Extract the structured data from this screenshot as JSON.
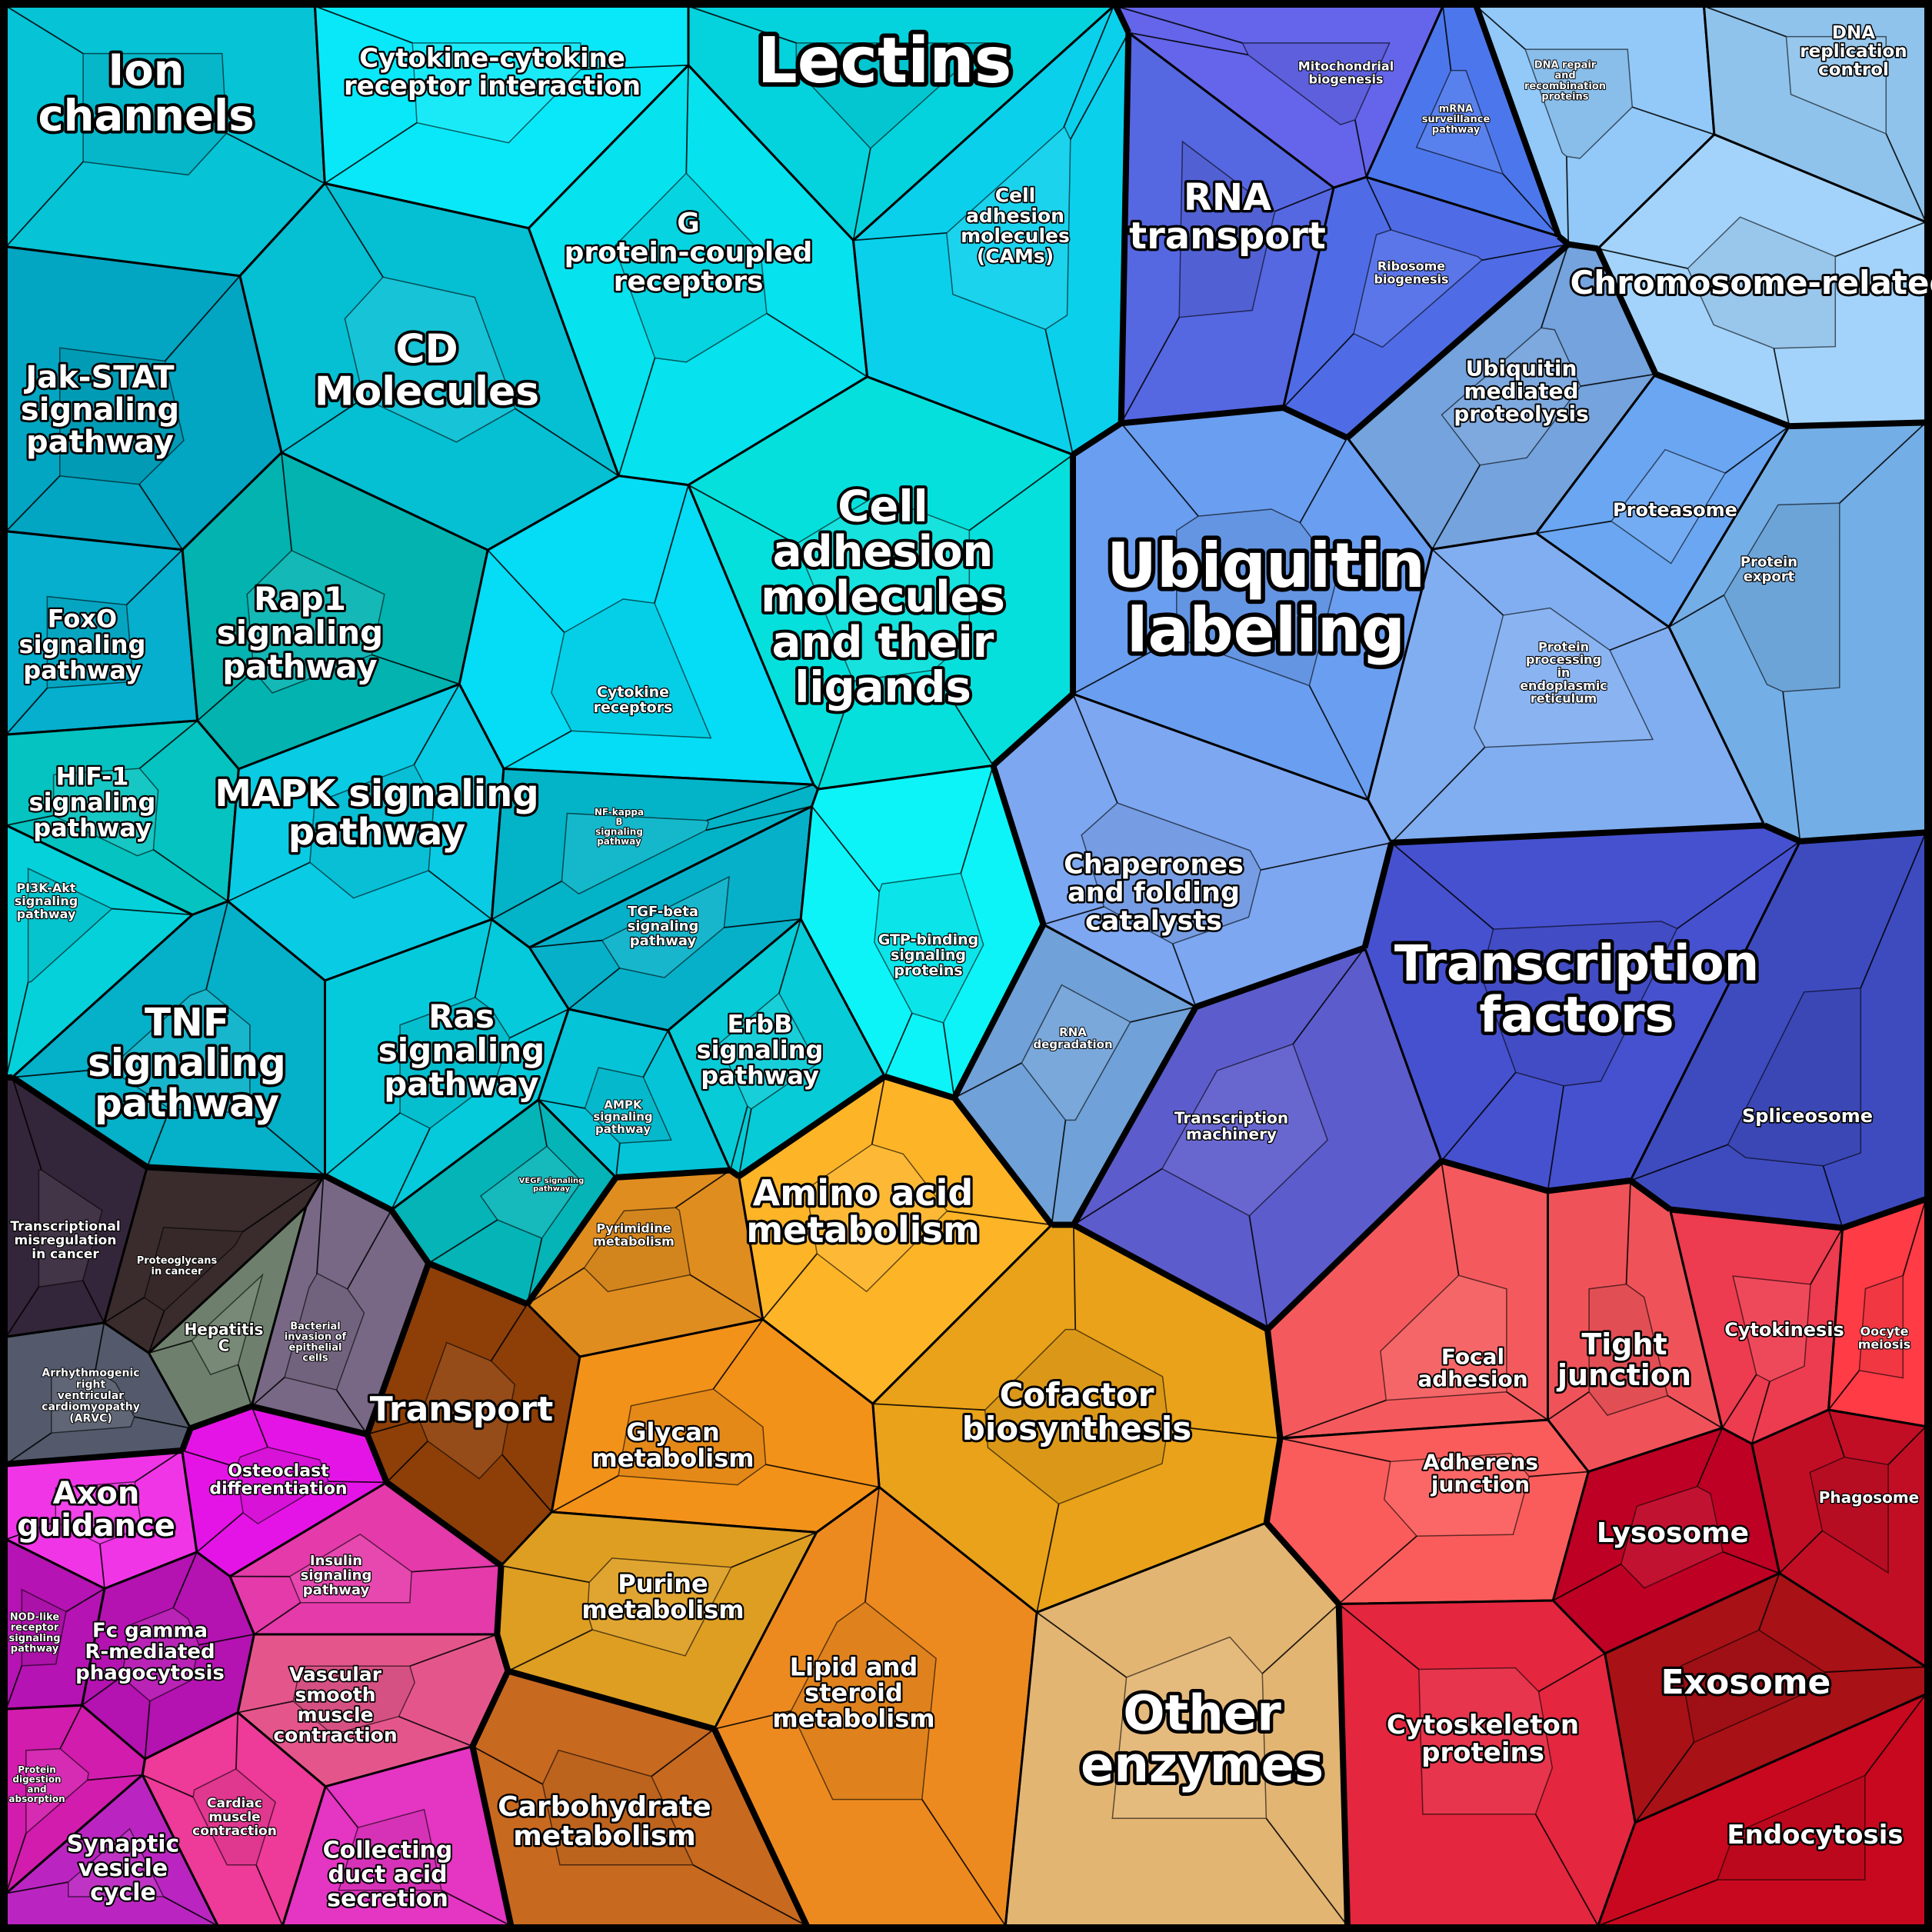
{
  "categories": [
    {
      "name": "Ion channels",
      "color": "#06c3d6"
    },
    {
      "name": "Cytokine-cytokine receptor interaction",
      "color": "#09e8f8"
    },
    {
      "name": "Lectins",
      "color": "#04d3dd"
    },
    {
      "name": "CD Molecules",
      "color": "#05bfd3"
    },
    {
      "name": "G protein-coupled receptors",
      "color": "#06e2ee"
    },
    {
      "name": "Cell adhesion molecules (CAMs)",
      "color": "#0ad0ec"
    },
    {
      "name": "Jak-STAT signaling pathway",
      "color": "#02a5c2"
    },
    {
      "name": "Cell adhesion molecules and their ligands",
      "color": "#05e0dc"
    },
    {
      "name": "FoxO signaling pathway",
      "color": "#05afcd"
    },
    {
      "name": "Rap1 signaling pathway",
      "color": "#02b3b0"
    },
    {
      "name": "Cytokine receptors",
      "color": "#05dcf5"
    },
    {
      "name": "HIF-1 signaling pathway",
      "color": "#04c3c0"
    },
    {
      "name": "MAPK signaling pathway",
      "color": "#09cbe4"
    },
    {
      "name": "NF-kappa B signaling pathway",
      "color": "#03b3c7"
    },
    {
      "name": "PI3K-Akt signaling pathway",
      "color": "#05d1da"
    },
    {
      "name": "TGF-beta signaling pathway",
      "color": "#06b0c9"
    },
    {
      "name": "GTP-binding signaling proteins",
      "color": "#0cf4f8"
    },
    {
      "name": "TNF signaling pathway",
      "color": "#05b0c9"
    },
    {
      "name": "Ras signaling pathway",
      "color": "#05cadb"
    },
    {
      "name": "ErbB signaling pathway",
      "color": "#07cbd6"
    },
    {
      "name": "AMPK signaling pathway",
      "color": "#06c4d8"
    },
    {
      "name": "VEGF signaling pathway",
      "color": "#04b4b7"
    },
    {
      "name": "Mitochondrial biogenesis",
      "color": "#6465ea"
    },
    {
      "name": "mRNA surveillance pathway",
      "color": "#4c77ec"
    },
    {
      "name": "RNA transport",
      "color": "#5667e2"
    },
    {
      "name": "Ribosome biogenesis",
      "color": "#4f6ce6"
    },
    {
      "name": "DNA repair and recombination proteins",
      "color": "#92c9f9"
    },
    {
      "name": "DNA replication control",
      "color": "#8fc3ec"
    },
    {
      "name": "Chromosome-related",
      "color": "#a3d3fa"
    },
    {
      "name": "Ubiquitin mediated proteolysis",
      "color": "#74a3dd"
    },
    {
      "name": "Ubiquitin labeling",
      "color": "#6a9ef0"
    },
    {
      "name": "Proteasome",
      "color": "#6aa6f2"
    },
    {
      "name": "Protein export",
      "color": "#74aee6"
    },
    {
      "name": "Protein processing in endoplasmic reticulum",
      "color": "#81aef0"
    },
    {
      "name": "Chaperones and folding catalysts",
      "color": "#7da7f1"
    },
    {
      "name": "RNA degradation",
      "color": "#70a1d8"
    },
    {
      "name": "Transcription factors",
      "color": "#4651d0"
    },
    {
      "name": "Transcription machinery",
      "color": "#5d5ccc"
    },
    {
      "name": "Spliceosome",
      "color": "#3e4bbf"
    },
    {
      "name": "Transcriptional misregulation in cancer",
      "color": "#34263a"
    },
    {
      "name": "Proteoglycans in cancer",
      "color": "#3a2c2c"
    },
    {
      "name": "Hepatitis C",
      "color": "#6e806d"
    },
    {
      "name": "Bacterial invasion of epithelial cells",
      "color": "#786886"
    },
    {
      "name": "Arrhythmogenic right ventricular cardiomyopathy (ARVC)",
      "color": "#545a6c"
    },
    {
      "name": "Pyrimidine metabolism",
      "color": "#e08d1f"
    },
    {
      "name": "Amino acid metabolism",
      "color": "#fdb427"
    },
    {
      "name": "Cofactor biosynthesis",
      "color": "#e9a219"
    },
    {
      "name": "Transport",
      "color": "#8d3f07"
    },
    {
      "name": "Glycan metabolism",
      "color": "#f39219"
    },
    {
      "name": "Purine metabolism",
      "color": "#de9e22"
    },
    {
      "name": "Lipid and steroid metabolism",
      "color": "#ed8a1f"
    },
    {
      "name": "Other enzymes",
      "color": "#e3b573"
    },
    {
      "name": "Carbohydrate metabolism",
      "color": "#c86920"
    },
    {
      "name": "Focal adhesion",
      "color": "#f45a5d"
    },
    {
      "name": "Tight junction",
      "color": "#ef5359"
    },
    {
      "name": "Cytokinesis",
      "color": "#ed3b4f"
    },
    {
      "name": "Oocyte meiosis",
      "color": "#ff3b46"
    },
    {
      "name": "Adherens junction",
      "color": "#fa5c5b"
    },
    {
      "name": "Phagosome",
      "color": "#c20e25"
    },
    {
      "name": "Lysosome",
      "color": "#bd0023"
    },
    {
      "name": "Exosome",
      "color": "#a81116"
    },
    {
      "name": "Cytoskeleton proteins",
      "color": "#e4263f"
    },
    {
      "name": "Endocytosis",
      "color": "#c8081e"
    },
    {
      "name": "Axon guidance",
      "color": "#f035e7"
    },
    {
      "name": "Osteoclast differentiation",
      "color": "#e514e6"
    },
    {
      "name": "Insulin signaling pathway",
      "color": "#e43aaa"
    },
    {
      "name": "NOD-like receptor signaling pathway",
      "color": "#b513b3"
    },
    {
      "name": "Fc gamma R-mediated phagocytosis",
      "color": "#b412b1"
    },
    {
      "name": "Vascular smooth muscle contraction",
      "color": "#e4568b"
    },
    {
      "name": "Protein digestion and absorption",
      "color": "#d21cad"
    },
    {
      "name": "Cardiac muscle contraction",
      "color": "#ee3a98"
    },
    {
      "name": "Synaptic vesicle cycle",
      "color": "#ba25c1"
    },
    {
      "name": "Collecting duct acid secretion",
      "color": "#e435c3"
    }
  ],
  "labels": [
    {
      "text": "Ion channels",
      "size": 56
    },
    {
      "text": "Cytokine-cytokine receptor interaction",
      "size": 34
    },
    {
      "text": "Lectins",
      "size": 82
    },
    {
      "text": "CD Molecules",
      "size": 52
    },
    {
      "text": "G protein-coupled receptors",
      "size": 36
    },
    {
      "text": "Cell adhesion molecules (CAMs)",
      "size": 25
    },
    {
      "text": "Jak-STAT signaling pathway",
      "size": 40
    },
    {
      "text": "Cell adhesion molecules and their ligands",
      "size": 56
    },
    {
      "text": "FoxO signaling pathway",
      "size": 32
    },
    {
      "text": "Rap1 signaling pathway",
      "size": 42
    },
    {
      "text": "Cytokine receptors",
      "size": 19
    },
    {
      "text": "HIF-1 signaling pathway",
      "size": 32
    },
    {
      "text": "MAPK signaling pathway",
      "size": 48
    },
    {
      "text": "NF-kappa B signaling pathway",
      "size": 12
    },
    {
      "text": "PI3K-Akt signaling pathway",
      "size": 16
    },
    {
      "text": "TGF-beta signaling pathway",
      "size": 18
    },
    {
      "text": "GTP-binding signaling proteins",
      "size": 19
    },
    {
      "text": "TNF signaling pathway",
      "size": 50
    },
    {
      "text": "Ras signaling pathway",
      "size": 42
    },
    {
      "text": "ErbB signaling pathway",
      "size": 32
    },
    {
      "text": "AMPK signaling pathway",
      "size": 15
    },
    {
      "text": "VEGF signaling pathway",
      "size": 10
    },
    {
      "text": "Mitochondrial biogenesis",
      "size": 16
    },
    {
      "text": "mRNA surveillance pathway",
      "size": 13
    },
    {
      "text": "RNA transport",
      "size": 48
    },
    {
      "text": "Ribosome biogenesis",
      "size": 16
    },
    {
      "text": "DNA repair and recombination proteins",
      "size": 13
    },
    {
      "text": "DNA replication control",
      "size": 23
    },
    {
      "text": "Chromosome-related",
      "size": 42
    },
    {
      "text": "Ubiquitin mediated proteolysis",
      "size": 28
    },
    {
      "text": "Ubiquitin labeling",
      "size": 80
    },
    {
      "text": "Proteasome",
      "size": 24
    },
    {
      "text": "Protein export",
      "size": 18
    },
    {
      "text": "Protein processing in endoplasmic reticulum",
      "size": 16
    },
    {
      "text": "Chaperones and folding catalysts",
      "size": 35
    },
    {
      "text": "RNA degradation",
      "size": 15
    },
    {
      "text": "Transcription factors",
      "size": 64
    },
    {
      "text": "Transcription machinery",
      "size": 20
    },
    {
      "text": "Spliceosome",
      "size": 24
    },
    {
      "text": "Transcriptional misregulation in cancer",
      "size": 17
    },
    {
      "text": "Proteoglycans in cancer",
      "size": 13
    },
    {
      "text": "Hepatitis C",
      "size": 20
    },
    {
      "text": "Bacterial invasion of epithelial cells",
      "size": 13
    },
    {
      "text": "Arrhythmogenic right ventricular cardiomyopathy (ARVC)",
      "size": 14
    },
    {
      "text": "Pyrimidine metabolism",
      "size": 16
    },
    {
      "text": "Amino acid metabolism",
      "size": 46
    },
    {
      "text": "Cofactor biosynthesis",
      "size": 42
    },
    {
      "text": "Transport",
      "size": 44
    },
    {
      "text": "Glycan metabolism",
      "size": 32
    },
    {
      "text": "Purine metabolism",
      "size": 32
    },
    {
      "text": "Lipid and steroid metabolism",
      "size": 32
    },
    {
      "text": "Other enzymes",
      "size": 64
    },
    {
      "text": "Carbohydrate metabolism",
      "size": 36
    },
    {
      "text": "Focal adhesion",
      "size": 28
    },
    {
      "text": "Tight junction",
      "size": 38
    },
    {
      "text": "Cytokinesis",
      "size": 24
    },
    {
      "text": "Oocyte meiosis",
      "size": 16
    },
    {
      "text": "Adherens junction",
      "size": 28
    },
    {
      "text": "Phagosome",
      "size": 20
    },
    {
      "text": "Lysosome",
      "size": 36
    },
    {
      "text": "Exosome",
      "size": 44
    },
    {
      "text": "Cytoskeleton proteins",
      "size": 34
    },
    {
      "text": "Endocytosis",
      "size": 34
    },
    {
      "text": "Axon guidance",
      "size": 40
    },
    {
      "text": "Osteoclast differentiation",
      "size": 22
    },
    {
      "text": "Insulin signaling pathway",
      "size": 18
    },
    {
      "text": "NOD-like receptor signaling pathway",
      "size": 13
    },
    {
      "text": "Fc gamma R-mediated phagocytosis",
      "size": 26
    },
    {
      "text": "Vascular smooth muscle contraction",
      "size": 25
    },
    {
      "text": "Protein digestion and absorption",
      "size": 12
    },
    {
      "text": "Cardiac muscle contraction",
      "size": 17
    },
    {
      "text": "Synaptic vesicle cycle",
      "size": 30
    },
    {
      "text": "Collecting duct acid secretion",
      "size": 30
    }
  ]
}
